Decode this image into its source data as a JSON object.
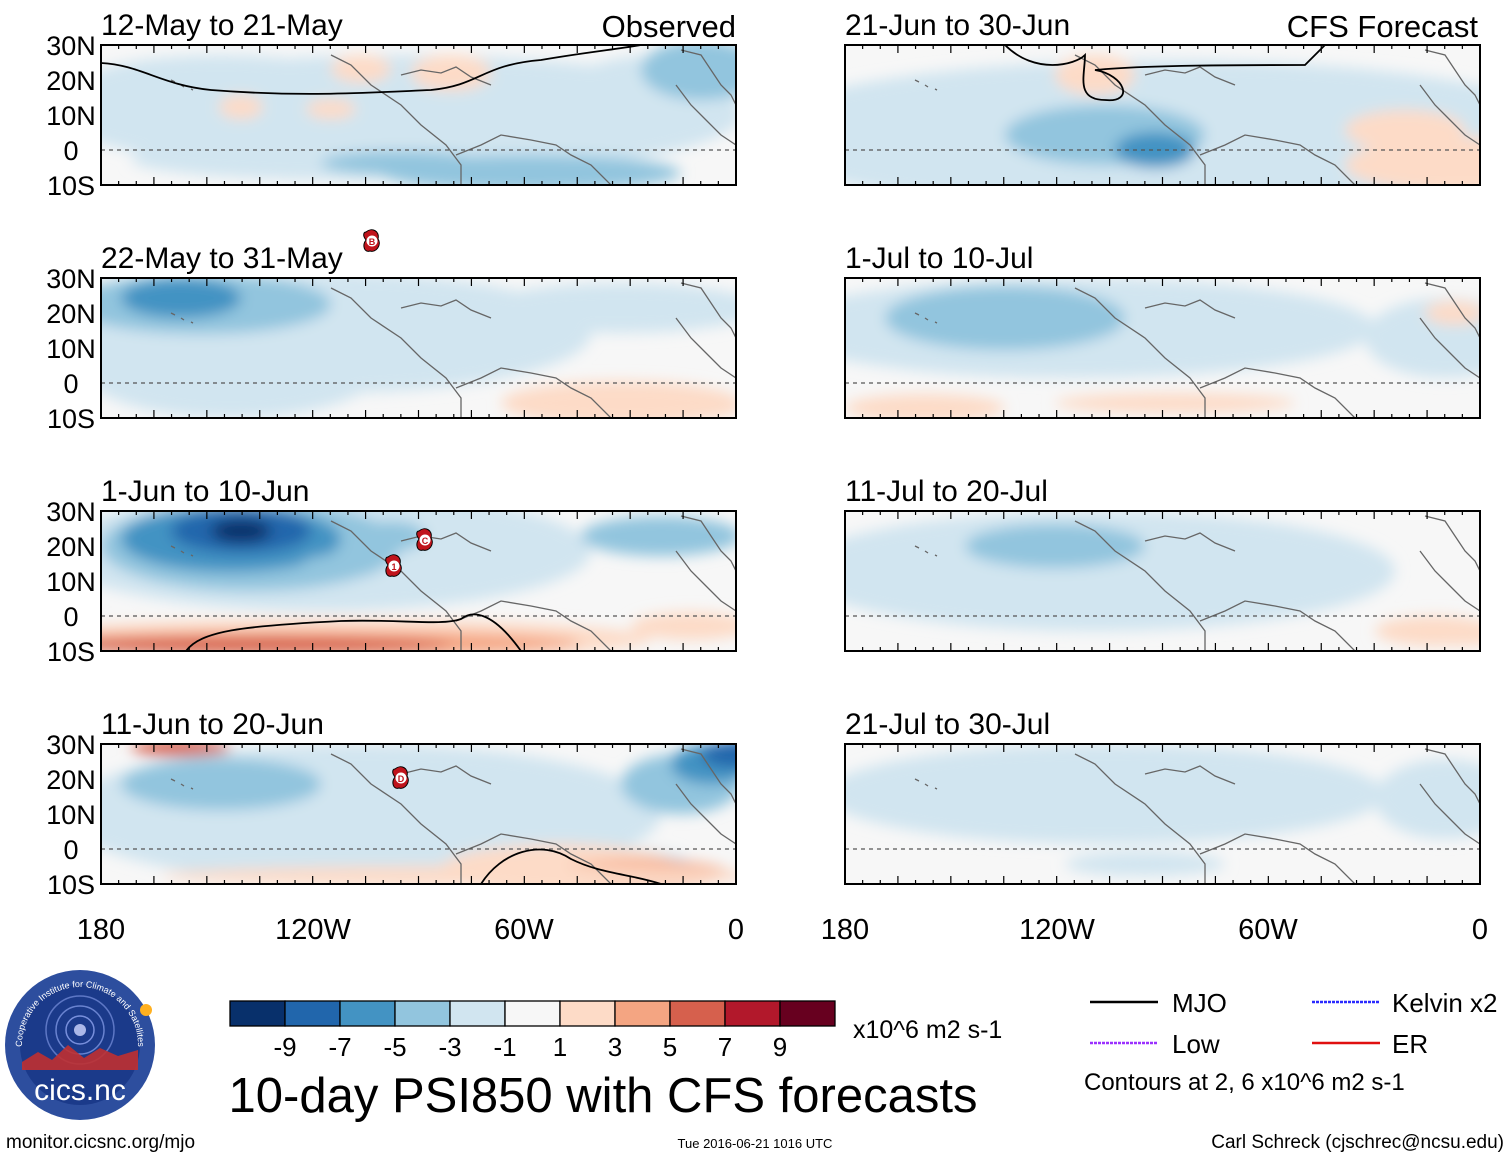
{
  "header": {
    "observed_label": "Observed",
    "forecast_label": "CFS Forecast"
  },
  "lat_labels": [
    "30N",
    "20N",
    "10N",
    "0",
    "10S"
  ],
  "lon_labels": [
    "180",
    "120W",
    "60W",
    "0"
  ],
  "panels": [
    {
      "id": "p1",
      "title": "12-May to 21-May",
      "column": "observed",
      "storms": []
    },
    {
      "id": "p2",
      "title": "22-May to 31-May",
      "column": "observed",
      "storms": [
        "B"
      ]
    },
    {
      "id": "p3",
      "title": "1-Jun to 10-Jun",
      "column": "observed",
      "storms": [
        "C",
        "1"
      ]
    },
    {
      "id": "p4",
      "title": "11-Jun to 20-Jun",
      "column": "observed",
      "storms": [
        "D"
      ]
    },
    {
      "id": "p5",
      "title": "21-Jun to 30-Jun",
      "column": "forecast",
      "storms": []
    },
    {
      "id": "p6",
      "title": "1-Jul to 10-Jul",
      "column": "forecast",
      "storms": []
    },
    {
      "id": "p7",
      "title": "11-Jul to 20-Jul",
      "column": "forecast",
      "storms": []
    },
    {
      "id": "p8",
      "title": "21-Jul to 30-Jul",
      "column": "forecast",
      "storms": []
    }
  ],
  "colorbar": {
    "colors": [
      "#08306b",
      "#2166ac",
      "#4393c3",
      "#92c5de",
      "#d1e5f0",
      "#f7f7f7",
      "#fddbc7",
      "#f4a582",
      "#d6604d",
      "#b2182b",
      "#67001f"
    ],
    "tick_labels": [
      "-9",
      "-7",
      "-5",
      "-3",
      "-1",
      "1",
      "3",
      "5",
      "7",
      "9"
    ],
    "units": "x10^6 m2 s-1"
  },
  "main_title": "10-day PSI850 with CFS forecasts",
  "legend": {
    "items": [
      {
        "label": "MJO",
        "color": "#000000"
      },
      {
        "label": "Kelvin x2",
        "color": "#2a2aff"
      },
      {
        "label": "Low",
        "color": "#9b30ff"
      },
      {
        "label": "ER",
        "color": "#e01010"
      }
    ],
    "contour_note": "Contours at 2, 6 x10^6 m2 s-1"
  },
  "logo": {
    "text": "cics.nc",
    "ring_text": "Cooperative Institute for Climate and Satellites"
  },
  "footer": {
    "url": "monitor.cicsnc.org/mjo",
    "timestamp": "Tue 2016-06-21 1016 UTC",
    "credit": "Carl Schreck (cjschrec@ncsu.edu)"
  }
}
